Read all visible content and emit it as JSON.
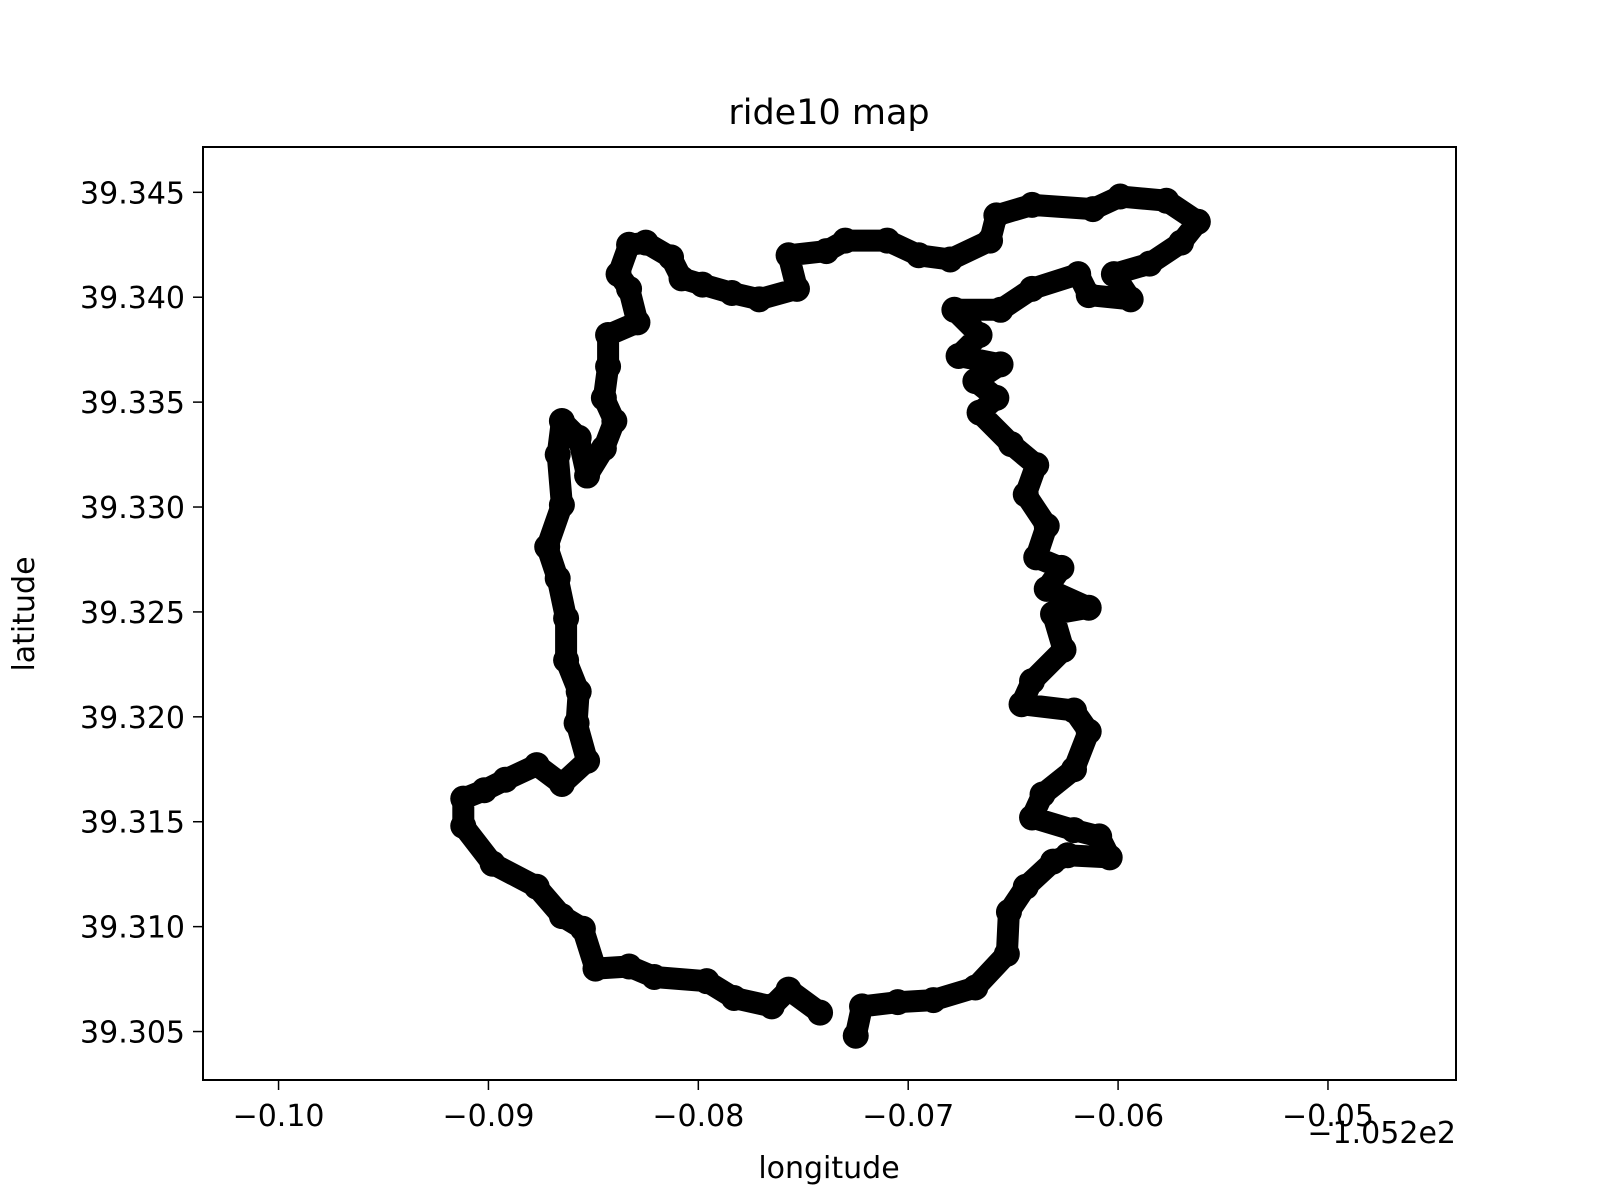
{
  "chart_data": {
    "type": "line",
    "title": "ride10 map",
    "x_label": "longitude",
    "y_label": "latitude",
    "x_offset_label": "−1.052e2",
    "color": "#000000",
    "xlim": [
      -105.3036,
      -105.2439
    ],
    "ylim": [
      39.30269,
      39.34716
    ],
    "xticks": [
      {
        "value": -105.3,
        "label": "−0.10"
      },
      {
        "value": -105.29,
        "label": "−0.09"
      },
      {
        "value": -105.28,
        "label": "−0.08"
      },
      {
        "value": -105.27,
        "label": "−0.07"
      },
      {
        "value": -105.26,
        "label": "−0.06"
      },
      {
        "value": -105.25,
        "label": "−0.05"
      }
    ],
    "yticks": [
      39.305,
      {
        "value": 39.31,
        "label": "39.310"
      },
      39.315,
      {
        "value": 39.32,
        "label": "39.320"
      },
      39.325,
      {
        "value": 39.33,
        "label": "39.330"
      },
      39.335,
      {
        "value": 39.34,
        "label": "39.340"
      },
      39.345
    ],
    "x": [
      -105.2725,
      -105.2722,
      -105.2705,
      -105.2688,
      -105.2668,
      -105.2653,
      -105.2652,
      -105.2644,
      -105.2631,
      -105.2624,
      -105.2604,
      -105.2609,
      -105.2621,
      -105.2641,
      -105.2636,
      -105.2621,
      -105.2614,
      -105.2621,
      -105.2646,
      -105.2641,
      -105.2626,
      -105.2631,
      -105.2614,
      -105.2634,
      -105.2627,
      -105.2639,
      -105.2634,
      -105.2644,
      -105.2639,
      -105.2651,
      -105.2666,
      -105.2658,
      -105.2668,
      -105.2656,
      -105.2676,
      -105.2666,
      -105.2678,
      -105.2656,
      -105.2641,
      -105.2619,
      -105.2614,
      -105.2594,
      -105.2602,
      -105.2585,
      -105.257,
      -105.2562,
      -105.2577,
      -105.2599,
      -105.2612,
      -105.2641,
      -105.2658,
      -105.2661,
      -105.268,
      -105.2695,
      -105.271,
      -105.273,
      -105.2739,
      -105.2757,
      -105.2753,
      -105.2771,
      -105.2784,
      -105.2798,
      -105.2808,
      -105.2813,
      -105.2825,
      -105.2833,
      -105.2838,
      -105.2833,
      -105.2829,
      -105.2843,
      -105.2843,
      -105.2845,
      -105.284,
      -105.2845,
      -105.2853,
      -105.2857,
      -105.2865,
      -105.2867,
      -105.2865,
      -105.2872,
      -105.2867,
      -105.2863,
      -105.2863,
      -105.2857,
      -105.2858,
      -105.2853,
      -105.2865,
      -105.2877,
      -105.2892,
      -105.2902,
      -105.2912,
      -105.2912,
      -105.2898,
      -105.2877,
      -105.2865,
      -105.2855,
      -105.2849,
      -105.2833,
      -105.2821,
      -105.2796,
      -105.2783,
      -105.2765,
      -105.2757,
      -105.2742
    ],
    "y": [
      39.3048,
      39.3062,
      39.3064,
      39.3065,
      39.3071,
      39.3087,
      39.3107,
      39.3119,
      39.3131,
      39.3134,
      39.3133,
      39.3143,
      39.3146,
      39.3152,
      39.3163,
      39.3175,
      39.3193,
      39.3203,
      39.3206,
      39.3217,
      39.3232,
      39.3249,
      39.3252,
      39.3261,
      39.3271,
      39.3276,
      39.3291,
      39.3306,
      39.332,
      39.333,
      39.3345,
      39.3352,
      39.336,
      39.3368,
      39.3372,
      39.3382,
      39.3394,
      39.3394,
      39.3404,
      39.3411,
      39.3401,
      39.3399,
      39.3411,
      39.3416,
      39.3426,
      39.3436,
      39.3446,
      39.3448,
      39.3442,
      39.3444,
      39.3439,
      39.3427,
      39.3418,
      39.342,
      39.3427,
      39.3427,
      39.3422,
      39.342,
      39.3404,
      39.3399,
      39.3402,
      39.3406,
      39.3409,
      39.3419,
      39.3426,
      39.3425,
      39.3411,
      39.3404,
      39.3388,
      39.3382,
      39.3367,
      39.3352,
      39.3341,
      39.3328,
      39.3315,
      39.3333,
      39.3341,
      39.3325,
      39.3301,
      39.3281,
      39.3266,
      39.3247,
      39.3227,
      39.3212,
      39.3197,
      39.3179,
      39.3168,
      39.3177,
      39.317,
      39.3165,
      39.3161,
      39.3148,
      39.313,
      39.3119,
      39.3105,
      39.3099,
      39.308,
      39.3081,
      39.3076,
      39.3074,
      39.3066,
      39.3062,
      39.307,
      39.3059
    ]
  }
}
